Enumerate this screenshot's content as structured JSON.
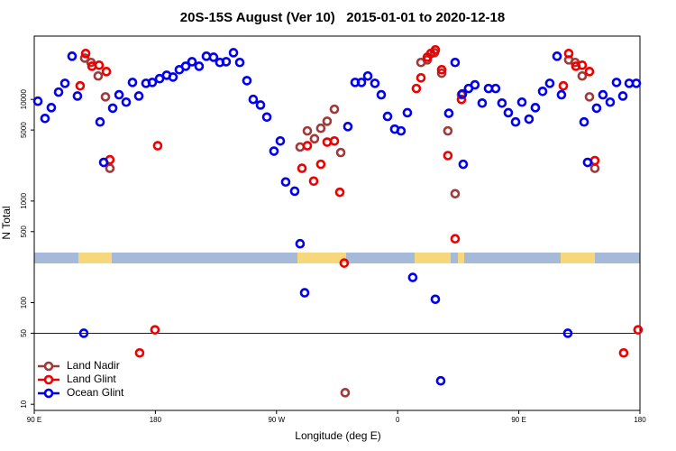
{
  "chart_data": {
    "type": "scatter",
    "title": "20S-15S August (Ver 10)   2015-01-01 to 2020-12-18",
    "x_label": "Longitude (deg E)",
    "y_label": "N Total",
    "xlim": [
      90,
      540
    ],
    "ylim": [
      8.7,
      42000
    ],
    "log_y": true,
    "xticks": [
      {
        "value": 90,
        "label": "90 E"
      },
      180,
      {
        "value": 270,
        "label": "90 W"
      },
      {
        "value": 360,
        "label": "0"
      },
      {
        "value": 450,
        "label": "90 E"
      },
      {
        "value": 540,
        "label": "180"
      }
    ],
    "yticks": [
      10,
      50,
      100,
      500,
      1000,
      5000,
      10000
    ],
    "reference_line": 50,
    "legend": "bottom-left",
    "series": [
      {
        "name": "Land Nadir",
        "color": "#a03a3a",
        "x": [
          127.5,
          132.2,
          137.5,
          142.9,
          146.2,
          287.5,
          292.9,
          298.2,
          302.9,
          307.6,
          313.0,
          317.7,
          321.0,
          377.3,
          382.0,
          387.3,
          392.7,
          397.3,
          402.7,
          407.4,
          487.1,
          491.8,
          497.1,
          502.5,
          506.5
        ],
        "values": [
          25500,
          23100,
          17000,
          10600,
          2100,
          3400,
          4900,
          4100,
          5200,
          6100,
          8000,
          3000,
          13,
          23100,
          24500,
          28800,
          18100,
          4900,
          1180,
          11100,
          24500,
          23100,
          17000,
          10600,
          2100
        ]
      },
      {
        "name": "Land Glint",
        "color": "#ee0000",
        "x": [
          124.1,
          128.2,
          132.9,
          138.2,
          143.6,
          146.2,
          168.3,
          179.7,
          181.7,
          288.9,
          292.9,
          297.6,
          302.9,
          307.6,
          313.0,
          317.0,
          320.3,
          373.9,
          377.3,
          382.0,
          384.6,
          388.0,
          392.7,
          397.3,
          402.7,
          407.4,
          483.1,
          487.1,
          492.4,
          497.1,
          502.5,
          506.5,
          527.9,
          538.6
        ],
        "values": [
          13600,
          28300,
          21200,
          21700,
          18800,
          2550,
          32,
          54,
          3500,
          2100,
          3500,
          1570,
          2300,
          3800,
          3900,
          1220,
          245,
          12800,
          16300,
          26000,
          28300,
          30700,
          19600,
          2800,
          425,
          10000,
          13600,
          28300,
          21200,
          21700,
          18800,
          2500,
          32,
          54
        ]
      },
      {
        "name": "Ocean Glint",
        "color": "#0000ee",
        "x": [
          92.7,
          98.0,
          102.7,
          108.1,
          112.8,
          118.1,
          122.1,
          126.8,
          138.9,
          141.6,
          148.3,
          153.0,
          158.3,
          163.0,
          167.7,
          173.0,
          177.7,
          183.1,
          188.4,
          193.1,
          197.8,
          202.5,
          207.2,
          212.5,
          217.9,
          223.2,
          227.9,
          232.6,
          238.0,
          242.7,
          248.0,
          252.7,
          258.1,
          262.8,
          268.1,
          272.8,
          276.8,
          283.5,
          287.5,
          290.9,
          323.0,
          328.4,
          333.1,
          337.8,
          343.1,
          347.8,
          352.5,
          357.8,
          362.5,
          367.2,
          371.2,
          388.0,
          392.0,
          398.0,
          402.7,
          408.1,
          408.7,
          412.7,
          417.4,
          422.8,
          427.5,
          432.8,
          437.5,
          442.2,
          447.6,
          452.3,
          457.6,
          462.3,
          467.7,
          473.0,
          478.4,
          481.7,
          486.4,
          498.5,
          501.1,
          507.8,
          512.5,
          517.9,
          522.6,
          527.3,
          532.0,
          537.3
        ],
        "values": [
          9600,
          6500,
          8300,
          11800,
          14400,
          26600,
          10800,
          50,
          6000,
          2400,
          8200,
          11100,
          9400,
          14700,
          10800,
          14400,
          14700,
          16000,
          17300,
          16600,
          19600,
          21200,
          23500,
          21200,
          26600,
          26000,
          23100,
          23500,
          28800,
          23100,
          15300,
          10000,
          8800,
          6700,
          3100,
          3900,
          1540,
          1250,
          380,
          125,
          5400,
          14700,
          14700,
          17000,
          14400,
          11100,
          6800,
          5100,
          4900,
          7400,
          177,
          108,
          17,
          7300,
          23100,
          11300,
          2300,
          12800,
          13900,
          9200,
          12800,
          12800,
          9200,
          7400,
          6000,
          9400,
          6400,
          8300,
          12000,
          14400,
          26600,
          11100,
          50,
          6000,
          2400,
          8200,
          11100,
          9400,
          14700,
          10800,
          14400,
          14400
        ]
      }
    ]
  }
}
